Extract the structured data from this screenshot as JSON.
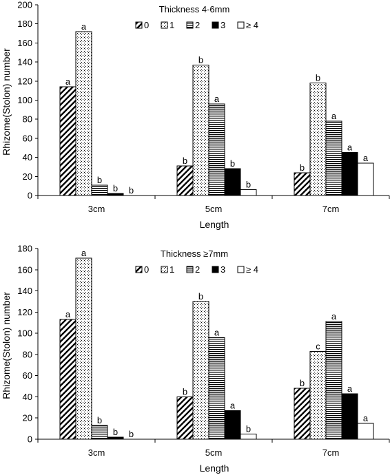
{
  "chart_data": [
    {
      "type": "bar",
      "title": "Thickness 4-6mm",
      "xlabel": "Length",
      "ylabel": "Rhizome(Stolon)  number",
      "categories": [
        "3cm",
        "5cm",
        "7cm"
      ],
      "ylim": [
        0,
        200
      ],
      "yticks": [
        0,
        20,
        40,
        60,
        80,
        100,
        120,
        140,
        160,
        180,
        200
      ],
      "legend_placement": "top-center",
      "grid": false,
      "series": [
        {
          "name": "0",
          "pattern": "diagonal",
          "values": [
            114,
            31,
            24
          ],
          "labels": [
            "a",
            "b",
            "b"
          ]
        },
        {
          "name": "1",
          "pattern": "dotted",
          "values": [
            172,
            137,
            118
          ],
          "labels": [
            "a",
            "b",
            "b"
          ]
        },
        {
          "name": "2",
          "pattern": "horizontal",
          "values": [
            11,
            96,
            78
          ],
          "labels": [
            "b",
            "a",
            "a"
          ]
        },
        {
          "name": "3",
          "pattern": "solid-black",
          "values": [
            2,
            28,
            45
          ],
          "labels": [
            "b",
            "b",
            "a"
          ]
        },
        {
          "name": "≥ 4",
          "pattern": "white",
          "values": [
            0,
            6,
            34
          ],
          "labels": [
            "b",
            "b",
            "a"
          ]
        }
      ]
    },
    {
      "type": "bar",
      "title": "Thickness ≥7mm",
      "xlabel": "Length",
      "ylabel": "Rhizome(Stolon)  number",
      "categories": [
        "3cm",
        "5cm",
        "7cm"
      ],
      "ylim": [
        0,
        180
      ],
      "yticks": [
        0,
        20,
        40,
        60,
        80,
        100,
        120,
        140,
        160,
        180
      ],
      "legend_placement": "top-center",
      "grid": false,
      "series": [
        {
          "name": "0",
          "pattern": "diagonal",
          "values": [
            113,
            40,
            48
          ],
          "labels": [
            "a",
            "b",
            "b"
          ]
        },
        {
          "name": "1",
          "pattern": "dotted",
          "values": [
            171,
            130,
            83
          ],
          "labels": [
            "a",
            "b",
            "c"
          ]
        },
        {
          "name": "2",
          "pattern": "horizontal",
          "values": [
            13,
            96,
            111
          ],
          "labels": [
            "b",
            "a",
            "a"
          ]
        },
        {
          "name": "3",
          "pattern": "solid-black",
          "values": [
            2,
            27,
            43
          ],
          "labels": [
            "b",
            "a",
            "a"
          ]
        },
        {
          "name": "≥ 4",
          "pattern": "white",
          "values": [
            0,
            5,
            15
          ],
          "labels": [
            "b",
            "b",
            "a"
          ]
        }
      ]
    }
  ]
}
